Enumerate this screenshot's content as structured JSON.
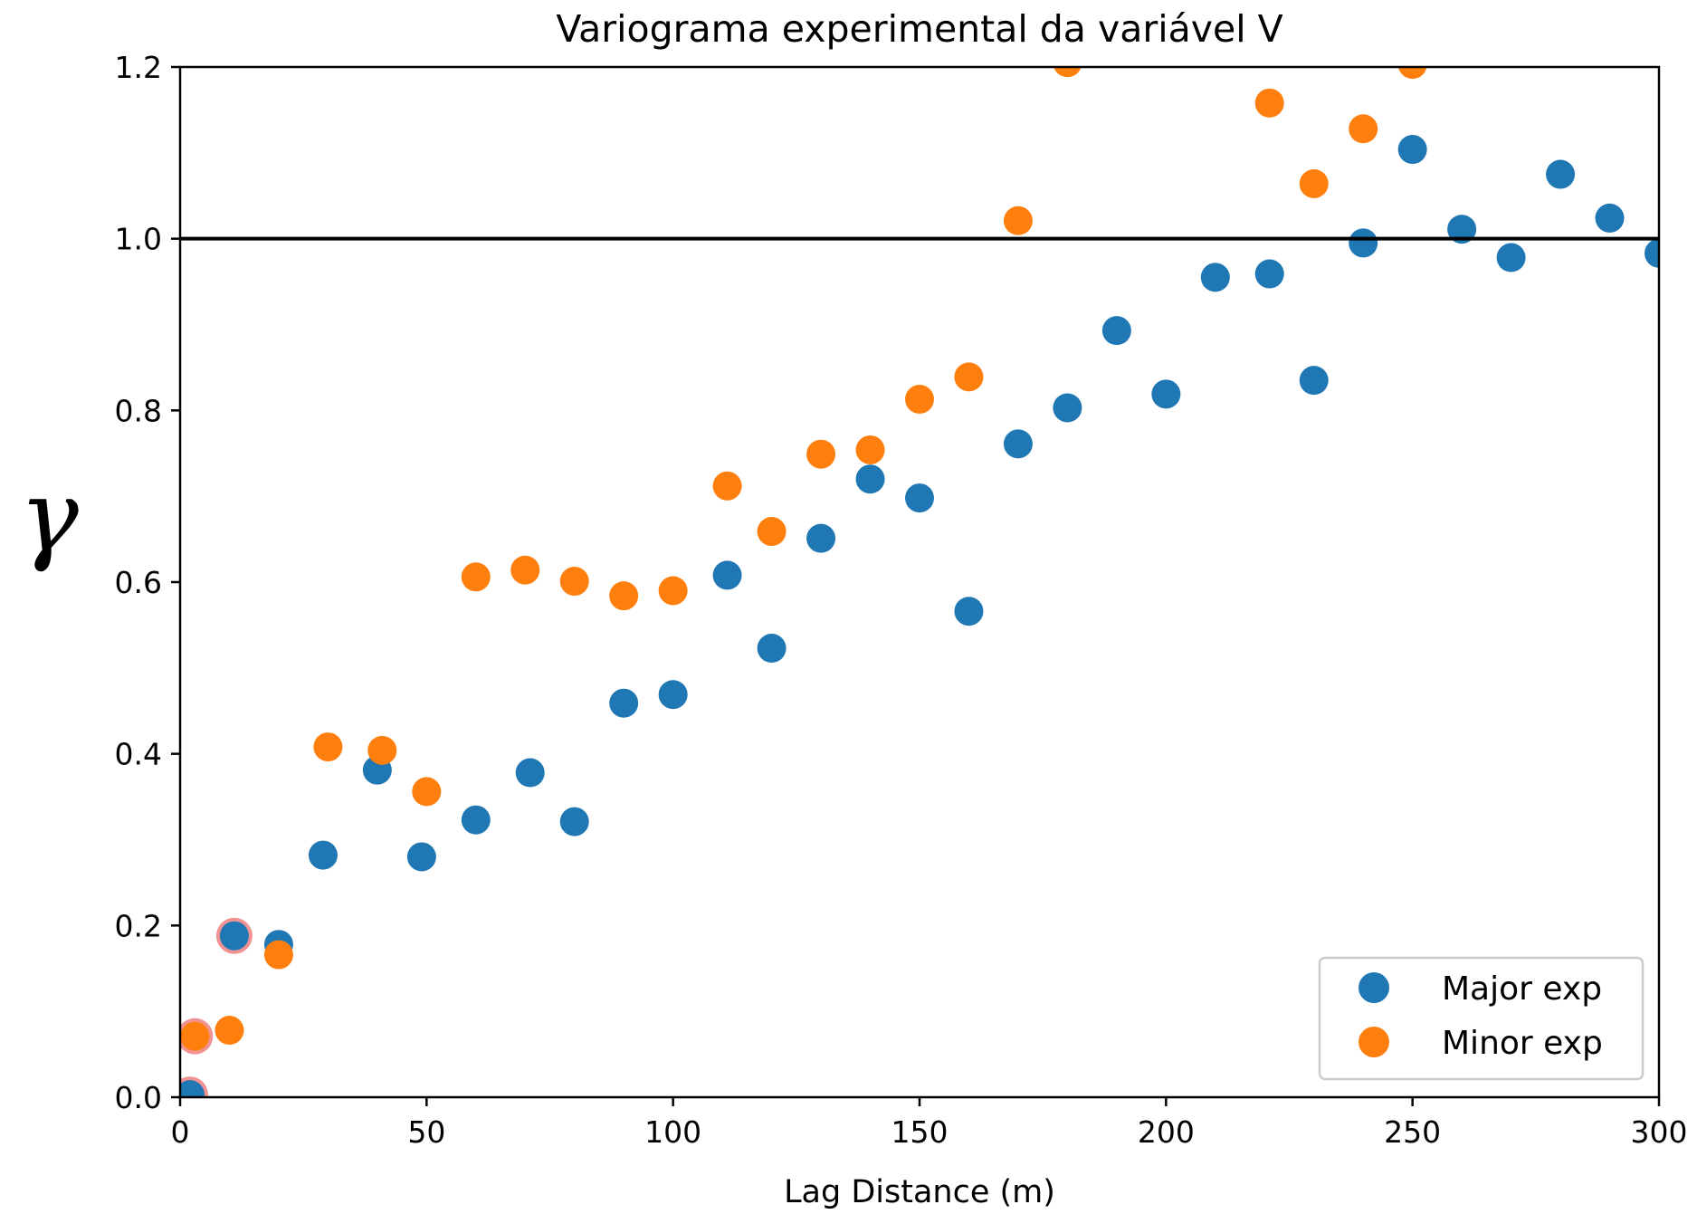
{
  "chart_data": {
    "type": "scatter",
    "title": "Variograma experimental da variável V",
    "xlabel": "Lag Distance (m)",
    "ylabel": "γ",
    "xlim": [
      0,
      300
    ],
    "ylim": [
      0,
      1.2
    ],
    "x_ticks": [
      0,
      50,
      100,
      150,
      200,
      250,
      300
    ],
    "y_ticks": [
      0.0,
      0.2,
      0.4,
      0.6,
      0.8,
      1.0,
      1.2
    ],
    "x_tick_labels": [
      "0",
      "50",
      "100",
      "150",
      "200",
      "250",
      "300"
    ],
    "y_tick_labels": [
      "0.0",
      "0.2",
      "0.4",
      "0.6",
      "0.8",
      "1.0",
      "1.2"
    ],
    "sill_line": 1.0,
    "grid": false,
    "legend_position": "bottom-right",
    "series": [
      {
        "name": "Major exp",
        "color": "#1f77b4",
        "points": [
          [
            2,
            0.003
          ],
          [
            11,
            0.188
          ],
          [
            20,
            0.178
          ],
          [
            29,
            0.282
          ],
          [
            40,
            0.381
          ],
          [
            49,
            0.28
          ],
          [
            60,
            0.323
          ],
          [
            71,
            0.378
          ],
          [
            80,
            0.321
          ],
          [
            90,
            0.459
          ],
          [
            100,
            0.469
          ],
          [
            111,
            0.608
          ],
          [
            120,
            0.523
          ],
          [
            130,
            0.651
          ],
          [
            140,
            0.72
          ],
          [
            150,
            0.698
          ],
          [
            160,
            0.566
          ],
          [
            170,
            0.761
          ],
          [
            180,
            0.803
          ],
          [
            190,
            0.893
          ],
          [
            200,
            0.819
          ],
          [
            210,
            0.955
          ],
          [
            221,
            0.959
          ],
          [
            230,
            0.835
          ],
          [
            240,
            0.995
          ],
          [
            250,
            1.104
          ],
          [
            260,
            1.011
          ],
          [
            270,
            0.978
          ],
          [
            280,
            1.075
          ],
          [
            290,
            1.024
          ],
          [
            300,
            0.983
          ]
        ]
      },
      {
        "name": "Minor exp",
        "color": "#ff7f0e",
        "points": [
          [
            3,
            0.071
          ],
          [
            10,
            0.078
          ],
          [
            20,
            0.166
          ],
          [
            30,
            0.408
          ],
          [
            41,
            0.404
          ],
          [
            50,
            0.356
          ],
          [
            60,
            0.606
          ],
          [
            70,
            0.614
          ],
          [
            80,
            0.601
          ],
          [
            90,
            0.584
          ],
          [
            100,
            0.59
          ],
          [
            111,
            0.712
          ],
          [
            120,
            0.659
          ],
          [
            130,
            0.749
          ],
          [
            140,
            0.754
          ],
          [
            150,
            0.813
          ],
          [
            160,
            0.839
          ],
          [
            170,
            1.021
          ],
          [
            180,
            1.205
          ],
          [
            221,
            1.158
          ],
          [
            230,
            1.064
          ],
          [
            240,
            1.128
          ],
          [
            250,
            1.203
          ]
        ]
      }
    ],
    "highlighted_points": [
      [
        2,
        0.003
      ],
      [
        3,
        0.071
      ],
      [
        11,
        0.188
      ]
    ],
    "highlight_color": "#f08080"
  }
}
